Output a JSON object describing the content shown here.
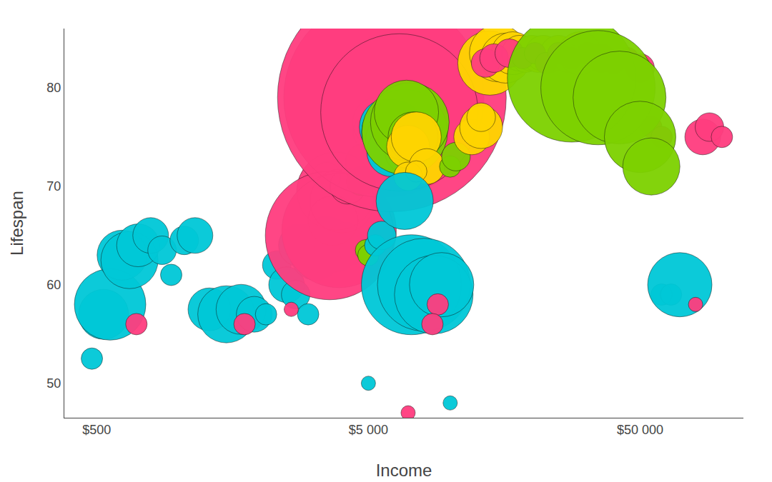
{
  "chart_data": {
    "type": "scatter",
    "log": "x",
    "grid": false,
    "ylabel": "Lifespan",
    "xlabel": "Income",
    "xlim": [
      380,
      120000
    ],
    "ylim": [
      46.5,
      86
    ],
    "xticks": [
      {
        "value": 500,
        "label": "$500"
      },
      {
        "value": 5000,
        "label": "$5 000"
      },
      {
        "value": 50000,
        "label": "$50 000"
      }
    ],
    "yticks": [
      50,
      60,
      70,
      80
    ],
    "x": [
      480,
      530,
      560,
      620,
      660,
      710,
      790,
      870,
      700,
      940,
      1050,
      1150,
      1300,
      1500,
      1700,
      1900,
      1750,
      2100,
      2300,
      2500,
      2700,
      3000,
      2800,
      3200,
      3500,
      3800,
      4100,
      4400,
      2600,
      3500,
      3800,
      4000,
      3700,
      3900,
      3600,
      4200,
      4800,
      4700,
      4900,
      5000,
      5300,
      5600,
      5100,
      5400,
      5700,
      6100,
      6500,
      5900,
      6200,
      6600,
      6100,
      6900,
      6800,
      7100,
      6900,
      7300,
      7000,
      7500,
      8200,
      7000,
      7500,
      6800,
      7200,
      8000,
      8700,
      9300,
      9000,
      8600,
      10000,
      10500,
      12000,
      13000,
      13000,
      14000,
      15000,
      16000,
      17000,
      18000,
      19000,
      20000,
      21000,
      22000,
      23500,
      25000,
      27000,
      30000,
      13500,
      14500,
      16500,
      18500,
      20500,
      22500,
      25000,
      28000,
      32000,
      36000,
      40000,
      45000,
      50000,
      55000,
      60000,
      28000,
      35000,
      42000,
      50000,
      55000,
      5000,
      7000,
      10000,
      60000,
      65000,
      70000,
      80000,
      85000,
      90000,
      100000
    ],
    "values": [
      52.5,
      57,
      58,
      63,
      62.5,
      64,
      65,
      63.5,
      56,
      61,
      64.5,
      65,
      57.5,
      57,
      57.5,
      57,
      56,
      57,
      62,
      60,
      59,
      57,
      64,
      63,
      64,
      63.5,
      64.5,
      63.5,
      57.5,
      71,
      69.5,
      68.5,
      66.5,
      65.5,
      65,
      70,
      72.5,
      70.5,
      63.5,
      63,
      64,
      65,
      75.5,
      76.5,
      79,
      79,
      77.5,
      76,
      75.5,
      74.5,
      73.5,
      73.5,
      75.5,
      76.5,
      77.5,
      75,
      74,
      75,
      72,
      71,
      71.5,
      68.5,
      60,
      60,
      59,
      60,
      58,
      56,
      72,
      73,
      75,
      76,
      77,
      82.5,
      83.5,
      83,
      83.5,
      83.5,
      83,
      83.5,
      83,
      83.5,
      83,
      83.5,
      83,
      83.5,
      82.5,
      83,
      83.5,
      83,
      83.5,
      82.5,
      83.5,
      83,
      83.5,
      83,
      82.5,
      83,
      82,
      76,
      75,
      81,
      80,
      79,
      75,
      72,
      50,
      47,
      48,
      59,
      59,
      60,
      58,
      75,
      76,
      75
    ],
    "sizes": [
      3,
      7,
      10,
      7,
      8,
      6,
      5,
      4,
      3,
      3,
      4,
      5,
      6,
      8,
      7,
      5,
      3,
      3,
      4,
      5,
      4,
      3,
      6,
      7,
      8,
      6,
      5,
      4,
      2,
      4,
      11,
      9,
      7,
      16,
      18,
      5,
      5,
      4,
      3,
      3,
      3,
      4,
      5,
      7,
      28,
      32,
      22,
      8,
      9,
      10,
      7,
      6,
      12,
      11,
      9,
      7,
      6,
      7,
      5,
      4,
      3,
      8,
      14,
      13,
      11,
      9,
      3,
      3,
      3,
      4,
      5,
      6,
      4,
      9,
      8,
      7,
      6,
      5,
      4,
      5,
      4,
      5,
      4,
      5,
      4,
      6,
      4,
      4,
      4,
      3,
      3,
      3,
      3,
      3,
      3,
      4,
      3,
      3,
      4,
      3,
      3,
      18,
      16,
      13,
      10,
      8,
      2,
      2,
      2,
      3,
      3,
      9,
      2,
      5,
      4,
      3
    ],
    "colors": [
      "#00C8D7",
      "#00C8D7",
      "#00C8D7",
      "#00C8D7",
      "#00C8D7",
      "#00C8D7",
      "#00C8D7",
      "#00C8D7",
      "#FF3D7F",
      "#00C8D7",
      "#00C8D7",
      "#00C8D7",
      "#00C8D7",
      "#00C8D7",
      "#00C8D7",
      "#00C8D7",
      "#FF3D7F",
      "#00C8D7",
      "#00C8D7",
      "#00C8D7",
      "#00C8D7",
      "#00C8D7",
      "#00C8D7",
      "#00C8D7",
      "#00C8D7",
      "#00C8D7",
      "#00C8D7",
      "#00C8D7",
      "#FF3D7F",
      "#FF3D7F",
      "#FF3D7F",
      "#FF3D7F",
      "#FF3D7F",
      "#FF3D7F",
      "#FF3D7F",
      "#FF3D7F",
      "#FFD500",
      "#7DD100",
      "#7DD100",
      "#7DD100",
      "#00C8D7",
      "#00C8D7",
      "#FF3D7F",
      "#FF3D7F",
      "#FF3D7F",
      "#FF3D7F",
      "#FF3D7F",
      "#00C8D7",
      "#00C8D7",
      "#00C8D7",
      "#00C8D7",
      "#00C8D7",
      "#7DD100",
      "#7DD100",
      "#7DD100",
      "#7DD100",
      "#FFD500",
      "#FFD500",
      "#FFD500",
      "#FFD500",
      "#FFD500",
      "#00C8D7",
      "#00C8D7",
      "#00C8D7",
      "#00C8D7",
      "#00C8D7",
      "#FF3D7F",
      "#FF3D7F",
      "#7DD100",
      "#7DD100",
      "#FFD500",
      "#FFD500",
      "#FFD500",
      "#FFD500",
      "#FFD500",
      "#FFD500",
      "#FFD500",
      "#FFD500",
      "#FFD500",
      "#FFD500",
      "#FFD500",
      "#FFD500",
      "#FFD500",
      "#FFD500",
      "#FFD500",
      "#FFD500",
      "#FF3D7F",
      "#FF3D7F",
      "#FF3D7F",
      "#FF3D7F",
      "#FF3D7F",
      "#FF3D7F",
      "#FF3D7F",
      "#FF3D7F",
      "#FF3D7F",
      "#FF3D7F",
      "#FF3D7F",
      "#FF3D7F",
      "#FF3D7F",
      "#FF3D7F",
      "#FF3D7F",
      "#7DD100",
      "#7DD100",
      "#7DD100",
      "#7DD100",
      "#7DD100",
      "#00C8D7",
      "#FF3D7F",
      "#00C8D7",
      "#00C8D7",
      "#00C8D7",
      "#00C8D7",
      "#FF3D7F",
      "#FF3D7F",
      "#FF3D7F",
      "#FF3D7F"
    ]
  }
}
